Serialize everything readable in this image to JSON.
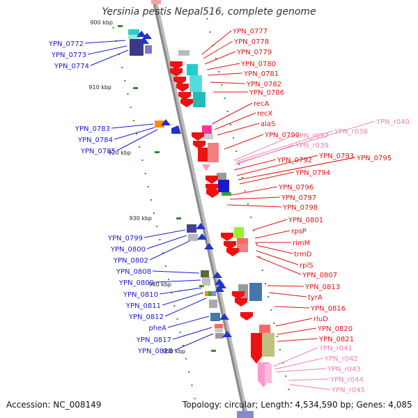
{
  "title": "Yersinia pestis Nepal516, complete genome",
  "footer": {
    "accession": "Accession: NC_008149",
    "topology": "Topology: circular; Length: 4,534,590 bp; Genes: 4,085"
  },
  "ticks": [
    "900 kbp",
    "910 kbp",
    "920 kbp",
    "930 kbp",
    "940 kbp",
    "950 kbp"
  ],
  "labels_left": [
    "YPN_0772",
    "YPN_0773",
    "YPN_0774",
    "YPN_0783",
    "YPN_0784",
    "YPN_0785",
    "YPN_0799",
    "YPN_0800",
    "YPN_0802",
    "YPN_0808",
    "YPN_0809",
    "YPN_0810",
    "YPN_0811",
    "YPN_0812",
    "pheA",
    "YPN_0817",
    "YPN_0818"
  ],
  "labels_right": [
    "YPN_0777",
    "YPN_0778",
    "YPN_0779",
    "YPN_0780",
    "YPN_0781",
    "YPN_0782",
    "YPN_0786",
    "recA",
    "recX",
    "alaS",
    "YPN_0790",
    "YPN_0792",
    "YPN_0793",
    "YPN_0795",
    "YPN_0794",
    "YPN_0796",
    "YPN_0797",
    "YPN_0798",
    "YPN_0801",
    "rpsP",
    "rimM",
    "trmD",
    "rplS",
    "YPN_0807",
    "YPN_0813",
    "tyrA",
    "YPN_0816",
    "rluD",
    "YPN_0820",
    "YPN_0821"
  ],
  "labels_pink": [
    "YPN_r040",
    "YPN_r038",
    "YPN_r037",
    "YPN_r039",
    "YPN_r041",
    "YPN_r042",
    "YPN_r043",
    "YPN_r044",
    "YPN_r045"
  ],
  "colors": {
    "left_label": "#1a1acc",
    "right_label": "#e01010",
    "rna_label": "#f080b0",
    "backbone": "#999999",
    "tick": "#2e8b2e",
    "cds": "#ee1111",
    "trna": "#ff99cc"
  }
}
